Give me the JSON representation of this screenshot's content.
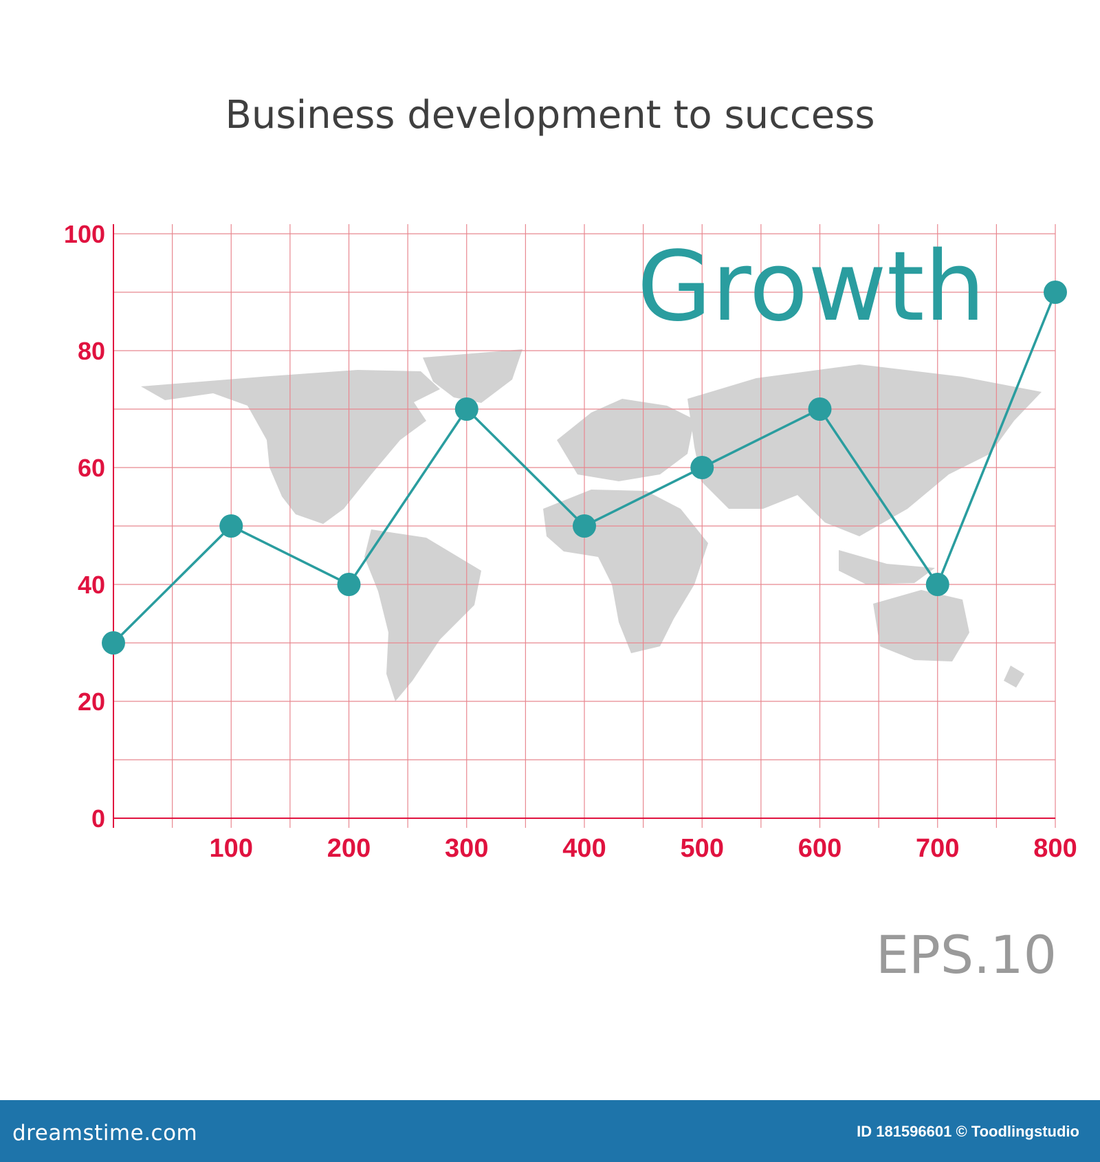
{
  "chart_data": {
    "type": "line",
    "title": "Business development to success",
    "annotation": "Growth",
    "x_ticks": [
      "100",
      "200",
      "300",
      "400",
      "500",
      "600",
      "700",
      "800"
    ],
    "y_ticks": [
      "0",
      "20",
      "40",
      "60",
      "80",
      "100"
    ],
    "xlim": [
      0,
      800
    ],
    "ylim": [
      0,
      100
    ],
    "grid": true,
    "series": [
      {
        "x": [
          0,
          100,
          200,
          300,
          400,
          500,
          600,
          700,
          800
        ],
        "y": [
          30,
          50,
          40,
          70,
          50,
          60,
          70,
          40,
          90
        ]
      }
    ],
    "background_graphic": "world-map",
    "colors": {
      "line": "#2a9d9f",
      "axis": "#e0123f",
      "grid": "#e8878f",
      "map": "#d2d2d2"
    }
  },
  "badge": "EPS.10",
  "footer": {
    "site": "dreamstime.com",
    "credit": "ID 181596601 © Toodlingstudio"
  }
}
